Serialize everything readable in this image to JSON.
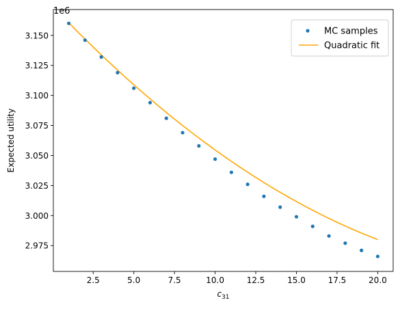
{
  "chart_data": {
    "type": "scatter",
    "title": "",
    "xlabel_main": "c",
    "xlabel_sub": "31",
    "ylabel": "Expected utility",
    "y_offset_label": "1e6",
    "xlim": [
      0.05,
      20.95
    ],
    "ylim": [
      2.9535,
      3.1715
    ],
    "x_ticks": [
      2.5,
      5.0,
      7.5,
      10.0,
      12.5,
      15.0,
      17.5,
      20.0
    ],
    "x_tick_labels": [
      "2.5",
      "5.0",
      "7.5",
      "10.0",
      "12.5",
      "15.0",
      "17.5",
      "20.0"
    ],
    "y_ticks": [
      2.975,
      3.0,
      3.025,
      3.05,
      3.075,
      3.1,
      3.125,
      3.15
    ],
    "y_tick_labels": [
      "2.975",
      "3.000",
      "3.025",
      "3.050",
      "3.075",
      "3.100",
      "3.125",
      "3.150"
    ],
    "grid": false,
    "legend_position": "top-right",
    "series": [
      {
        "name": "MC samples",
        "kind": "scatter",
        "color": "#1f77b4",
        "x": [
          1,
          2,
          3,
          4,
          5,
          6,
          7,
          8,
          9,
          10,
          11,
          12,
          13,
          14,
          15,
          16,
          17,
          18,
          19,
          20
        ],
        "y": [
          3.16,
          3.146,
          3.132,
          3.119,
          3.106,
          3.094,
          3.081,
          3.069,
          3.058,
          3.047,
          3.036,
          3.026,
          3.016,
          3.007,
          2.999,
          2.991,
          2.983,
          2.977,
          2.971,
          2.966
        ]
      },
      {
        "name": "Quadratic fit",
        "kind": "line",
        "color": "#ffa500",
        "coefficients": [
          3.1745,
          -0.01425,
          0.0002262
        ]
      }
    ]
  }
}
